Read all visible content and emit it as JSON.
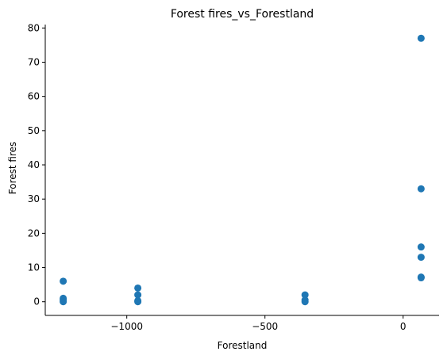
{
  "chart_data": {
    "type": "scatter",
    "title": "Forest fires_vs_Forestland",
    "xlabel": "Forestland",
    "ylabel": "Forest fires",
    "xlim": [
      -1295,
      130
    ],
    "ylim": [
      -4,
      81
    ],
    "x_ticks": [
      -1000,
      -500,
      0
    ],
    "x_tick_labels": [
      "−1000",
      "−500",
      "0"
    ],
    "y_ticks": [
      0,
      10,
      20,
      30,
      40,
      50,
      60,
      70,
      80
    ],
    "y_tick_labels": [
      "0",
      "10",
      "20",
      "30",
      "40",
      "50",
      "60",
      "70",
      "80"
    ],
    "grid": false,
    "spines": "left-bottom",
    "marker_color": "#1f77b4",
    "points": [
      {
        "x": -1230,
        "y": 6
      },
      {
        "x": -1230,
        "y": 1
      },
      {
        "x": -1230,
        "y": 0.5
      },
      {
        "x": -1230,
        "y": 0
      },
      {
        "x": -960,
        "y": 4
      },
      {
        "x": -960,
        "y": 2
      },
      {
        "x": -960,
        "y": 0.3
      },
      {
        "x": -960,
        "y": 0
      },
      {
        "x": -355,
        "y": 2
      },
      {
        "x": -355,
        "y": 0.5
      },
      {
        "x": -355,
        "y": 0
      },
      {
        "x": 65,
        "y": 77
      },
      {
        "x": 65,
        "y": 33
      },
      {
        "x": 65,
        "y": 16
      },
      {
        "x": 65,
        "y": 13
      },
      {
        "x": 65,
        "y": 7.2
      },
      {
        "x": 65,
        "y": 7
      }
    ]
  }
}
